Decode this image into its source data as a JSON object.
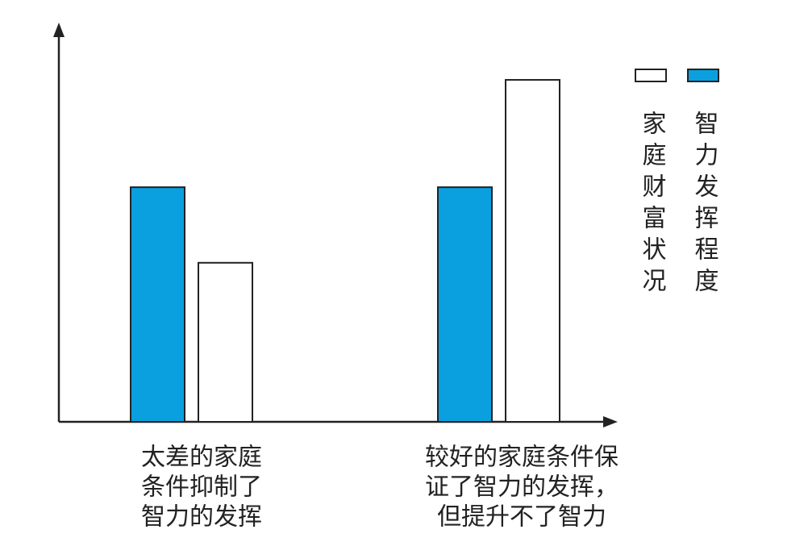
{
  "chart_data": {
    "type": "bar",
    "categories": [
      [
        "太差的家庭",
        "条件抑制了",
        "智力的发挥"
      ],
      [
        "较好的家庭条件保",
        "证了智力的发挥，",
        "但提升不了智力"
      ]
    ],
    "series": [
      {
        "name": "智力发挥程度",
        "color": "#0aa0e0",
        "values": [
          59,
          59
        ]
      },
      {
        "name": "家庭财富状况",
        "color": "#ffffff",
        "values": [
          40,
          86
        ]
      }
    ],
    "ylim": [
      0,
      100
    ]
  }
}
